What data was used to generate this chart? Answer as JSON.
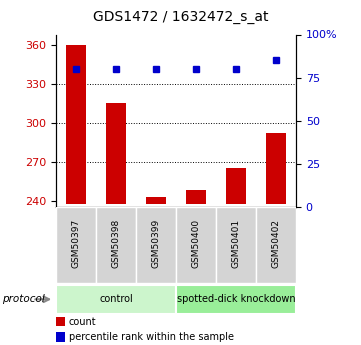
{
  "title": "GDS1472 / 1632472_s_at",
  "samples": [
    "GSM50397",
    "GSM50398",
    "GSM50399",
    "GSM50400",
    "GSM50401",
    "GSM50402"
  ],
  "counts": [
    360,
    315,
    243,
    248,
    265,
    292
  ],
  "percentile_ranks": [
    80,
    80,
    80,
    80,
    80,
    85
  ],
  "ylim_left": [
    235,
    368
  ],
  "ylim_right": [
    0,
    100
  ],
  "yticks_left": [
    240,
    270,
    300,
    330,
    360
  ],
  "yticks_right": [
    0,
    25,
    50,
    75,
    100
  ],
  "bar_color": "#cc0000",
  "dot_color": "#0000cc",
  "bar_bottom": 237,
  "grid_lines": [
    270,
    300,
    330
  ],
  "protocols": [
    {
      "label": "control",
      "start": 0,
      "end": 3,
      "color": "#ccf5cc"
    },
    {
      "label": "spotted-dick knockdown",
      "start": 3,
      "end": 6,
      "color": "#99ee99"
    }
  ],
  "legend_items": [
    {
      "label": "count",
      "color": "#cc0000"
    },
    {
      "label": "percentile rank within the sample",
      "color": "#0000cc"
    }
  ],
  "protocol_label": "protocol",
  "title_fontsize": 10,
  "tick_fontsize": 8,
  "bar_width": 0.5
}
